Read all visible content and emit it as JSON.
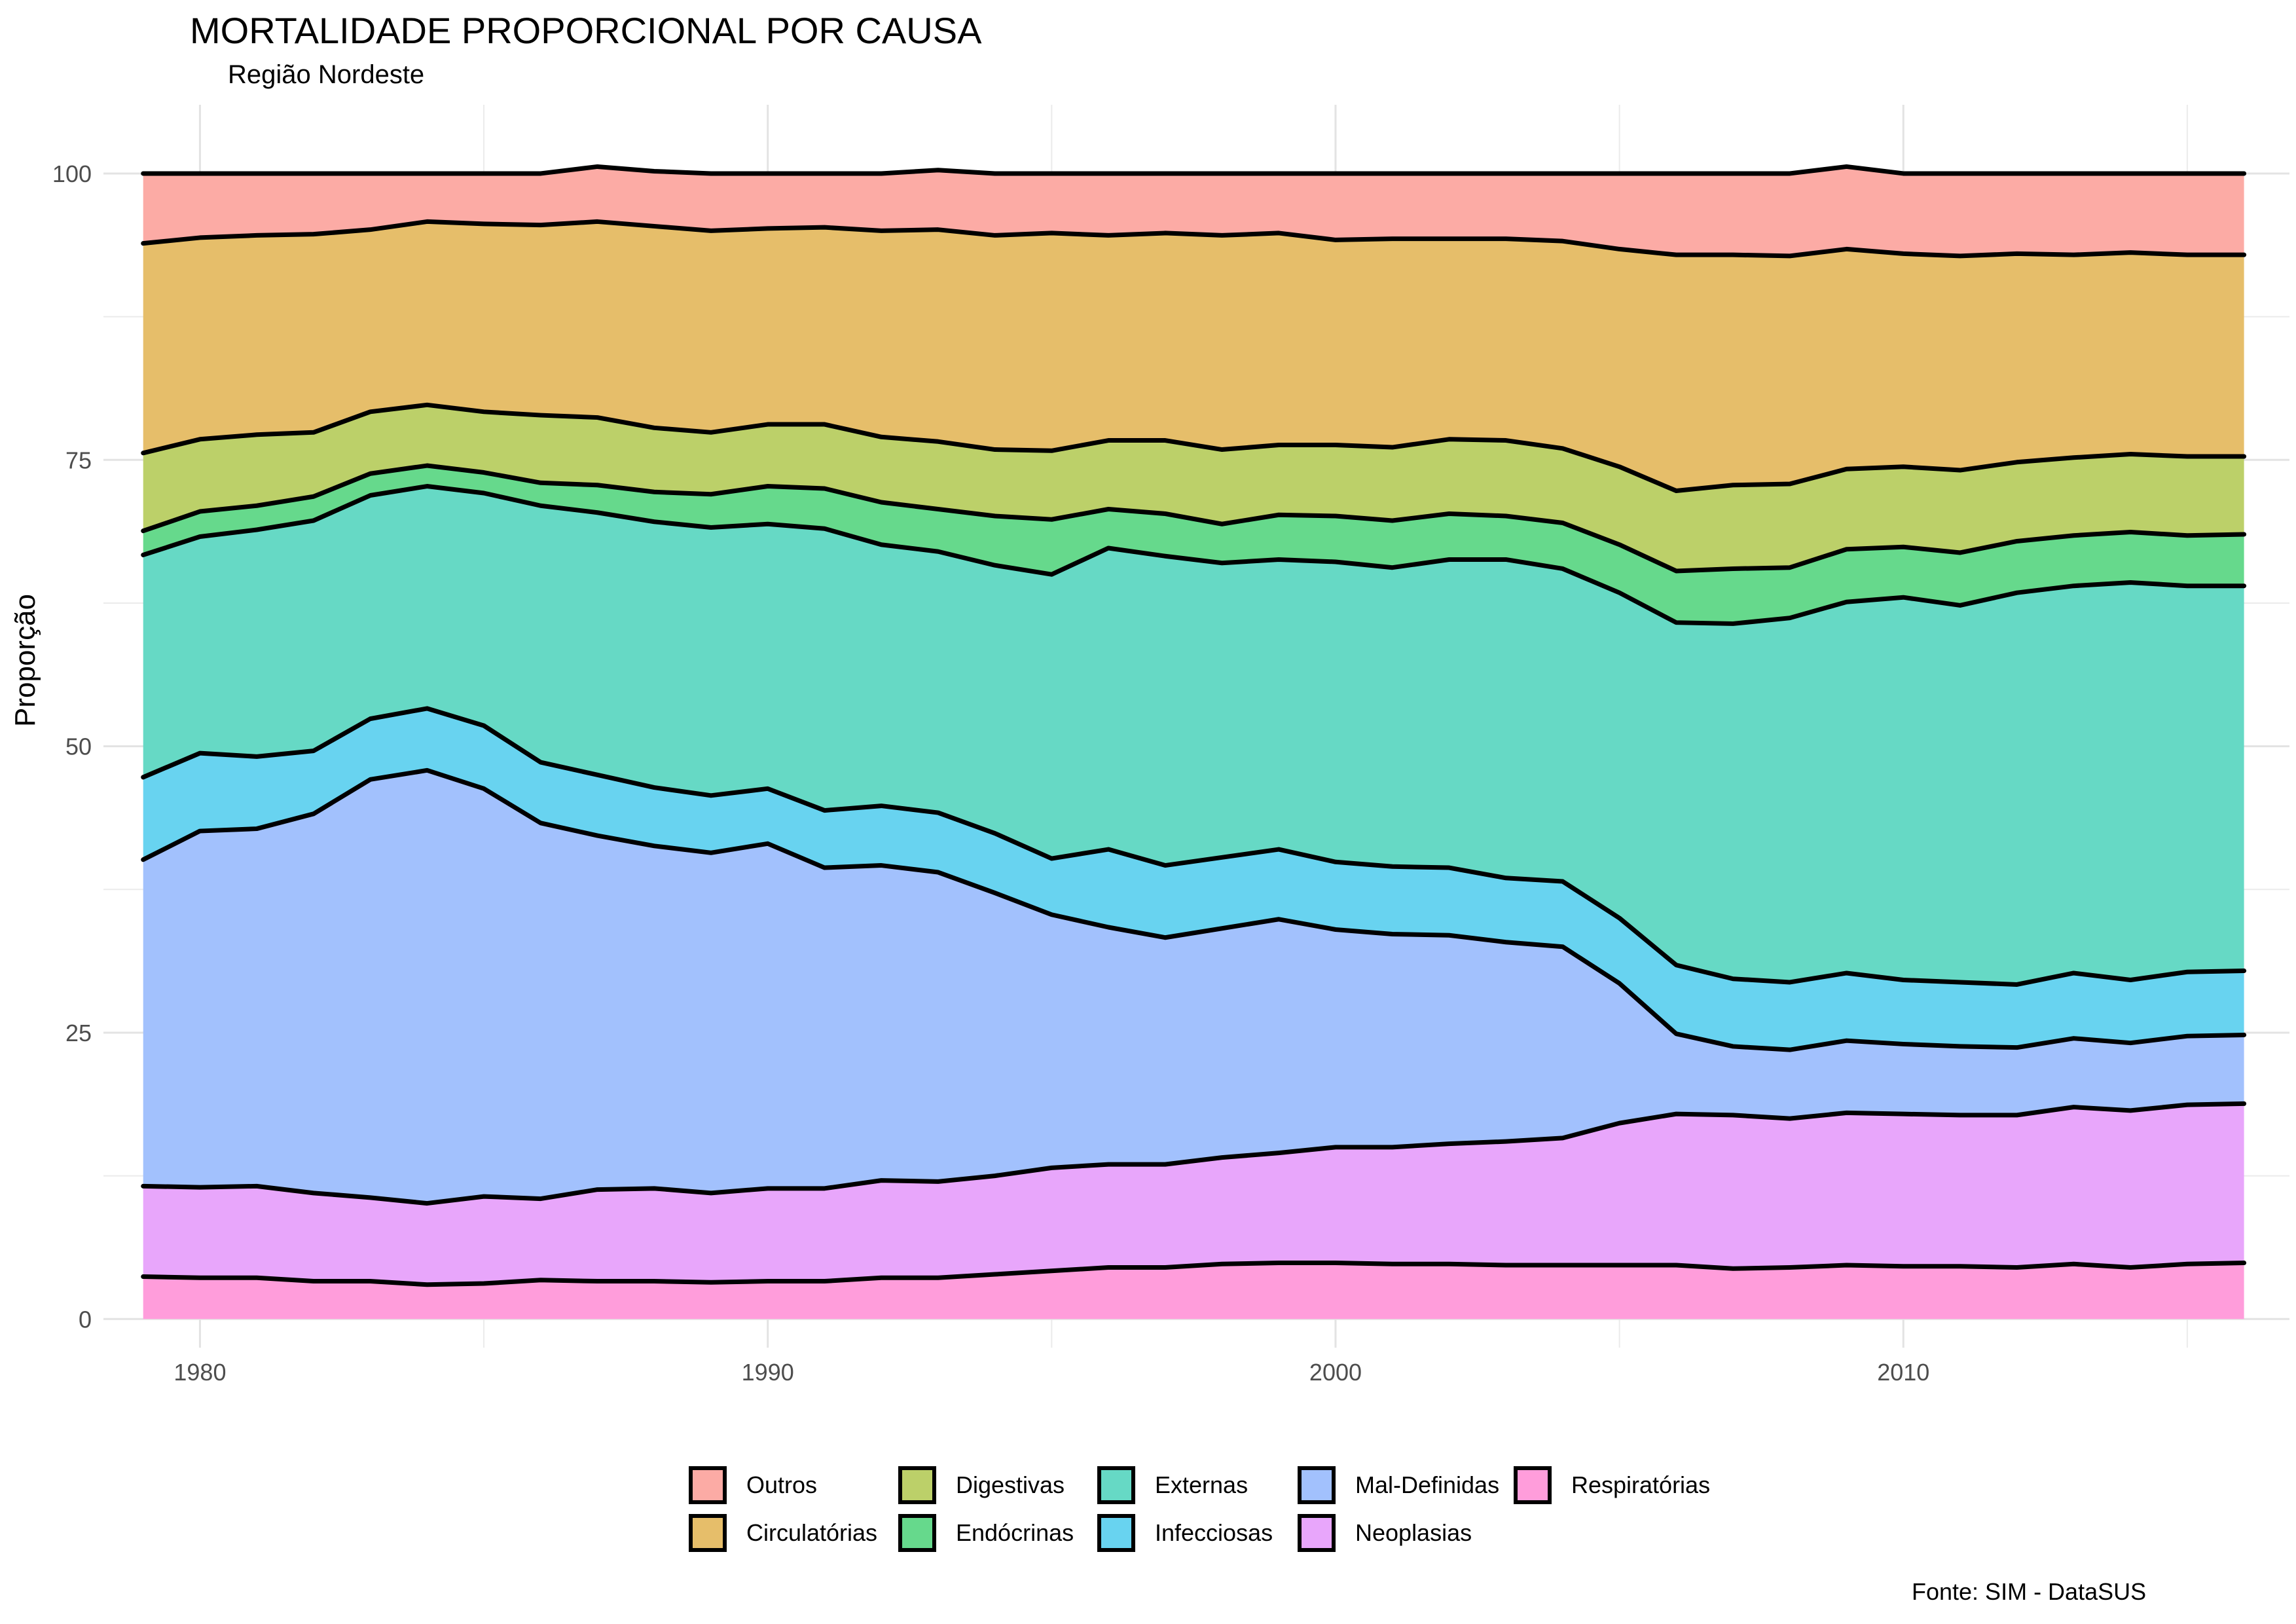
{
  "chart_data": {
    "type": "area",
    "stacked": true,
    "title": "MORTALIDADE PROPORCIONAL POR CAUSA",
    "subtitle": "Região Nordeste",
    "xlabel": "",
    "ylabel": "Proporção",
    "caption": "Fonte: SIM - DataSUS",
    "xlim": [
      1978.3,
      2016.8
    ],
    "ylim": [
      -2.5,
      106
    ],
    "x_ticks": [
      1980,
      1990,
      2000,
      2010
    ],
    "y_ticks": [
      0,
      25,
      50,
      75,
      100
    ],
    "grid": true,
    "legend_position": "bottom",
    "x": [
      1979,
      1980,
      1981,
      1982,
      1983,
      1984,
      1985,
      1986,
      1987,
      1988,
      1989,
      1990,
      1991,
      1992,
      1993,
      1994,
      1995,
      1996,
      1997,
      1998,
      1999,
      2000,
      2001,
      2002,
      2003,
      2004,
      2005,
      2006,
      2007,
      2008,
      2009,
      2010,
      2011,
      2012,
      2013,
      2014,
      2015,
      2016
    ],
    "series": [
      {
        "name": "Respiratórias",
        "color": "#FF9DDB",
        "values": [
          3.7,
          3.6,
          3.6,
          3.3,
          3.3,
          3.0,
          3.1,
          3.4,
          3.3,
          3.3,
          3.2,
          3.3,
          3.3,
          3.6,
          3.6,
          3.9,
          4.2,
          4.5,
          4.5,
          4.8,
          4.9,
          4.9,
          4.8,
          4.8,
          4.7,
          4.7,
          4.7,
          4.7,
          4.4,
          4.5,
          4.7,
          4.6,
          4.6,
          4.5,
          4.8,
          4.5,
          4.8,
          4.9
        ]
      },
      {
        "name": "Neoplasias",
        "color": "#E8A6FB",
        "values": [
          7.9,
          7.9,
          8.0,
          7.7,
          7.3,
          7.1,
          7.6,
          7.1,
          8.0,
          8.1,
          7.8,
          8.1,
          8.1,
          8.5,
          8.4,
          8.6,
          9.0,
          9.0,
          9.0,
          9.3,
          9.6,
          10.1,
          10.2,
          10.5,
          10.8,
          11.1,
          12.4,
          13.2,
          13.4,
          13.0,
          13.3,
          13.3,
          13.2,
          13.3,
          13.7,
          13.7,
          13.9,
          13.9
        ]
      },
      {
        "name": "Mal-Definidas",
        "color": "#A2C1FD",
        "values": [
          28.5,
          31.1,
          31.2,
          33.1,
          36.5,
          37.8,
          35.6,
          32.8,
          30.9,
          29.9,
          29.7,
          30.1,
          28.0,
          27.5,
          27.0,
          24.7,
          22.1,
          20.7,
          19.8,
          20.0,
          20.4,
          19.0,
          18.6,
          18.2,
          17.4,
          16.7,
          12.2,
          7.0,
          6.0,
          6.0,
          6.3,
          6.1,
          6.0,
          5.9,
          6.0,
          5.9,
          6.0,
          6.0
        ]
      },
      {
        "name": "Infecciosas",
        "color": "#68D3F0",
        "values": [
          7.2,
          6.8,
          6.3,
          5.5,
          5.3,
          5.4,
          5.5,
          5.3,
          5.3,
          5.1,
          5.0,
          4.8,
          5.0,
          5.2,
          5.2,
          5.2,
          4.9,
          6.8,
          6.3,
          6.2,
          6.1,
          5.9,
          5.9,
          5.9,
          5.6,
          5.7,
          5.7,
          6.0,
          5.9,
          5.9,
          5.9,
          5.6,
          5.6,
          5.5,
          5.7,
          5.5,
          5.6,
          5.6
        ]
      },
      {
        "name": "Externas",
        "color": "#66D9C5",
        "values": [
          19.4,
          18.9,
          19.8,
          20.1,
          19.5,
          19.4,
          20.3,
          22.4,
          22.9,
          23.2,
          23.4,
          23.1,
          24.6,
          22.8,
          22.8,
          23.4,
          24.8,
          26.3,
          27.0,
          25.7,
          25.3,
          26.2,
          26.1,
          26.9,
          27.8,
          27.3,
          28.4,
          29.9,
          31.0,
          31.8,
          32.4,
          33.4,
          32.9,
          34.2,
          33.8,
          34.7,
          33.7,
          33.6
        ]
      },
      {
        "name": "Endócrinas",
        "color": "#66D98C",
        "values": [
          2.1,
          2.2,
          2.1,
          2.1,
          1.9,
          1.8,
          1.8,
          2.0,
          2.4,
          2.6,
          2.9,
          3.3,
          3.5,
          3.7,
          3.7,
          4.3,
          4.8,
          3.4,
          3.7,
          3.4,
          3.9,
          4.0,
          4.1,
          4.0,
          3.8,
          4.0,
          4.2,
          4.5,
          4.8,
          4.4,
          4.6,
          4.4,
          4.6,
          4.5,
          4.4,
          4.4,
          4.4,
          4.5
        ]
      },
      {
        "name": "Digestivas",
        "color": "#BCD069",
        "values": [
          6.8,
          6.3,
          6.2,
          5.6,
          5.4,
          5.3,
          5.3,
          5.9,
          5.9,
          5.6,
          5.4,
          5.4,
          5.6,
          5.7,
          5.9,
          5.8,
          6.0,
          6.0,
          6.4,
          6.5,
          6.1,
          6.2,
          6.4,
          6.5,
          6.6,
          6.5,
          6.8,
          7.0,
          7.3,
          7.3,
          7.0,
          7.0,
          7.2,
          6.9,
          6.8,
          6.8,
          6.9,
          6.8
        ]
      },
      {
        "name": "Circulatórias",
        "color": "#E6BE6A",
        "values": [
          18.3,
          17.6,
          17.4,
          17.3,
          15.9,
          16.0,
          16.4,
          16.6,
          17.1,
          17.6,
          17.6,
          17.1,
          17.2,
          18.0,
          18.5,
          18.7,
          19.0,
          17.9,
          18.1,
          18.7,
          18.5,
          17.9,
          18.2,
          17.5,
          17.6,
          18.1,
          19.0,
          20.6,
          20.1,
          19.9,
          19.2,
          18.6,
          18.7,
          18.2,
          17.7,
          17.6,
          17.6,
          17.6
        ]
      },
      {
        "name": "Outros",
        "color": "#FCABA5",
        "values": [
          6.1,
          5.6,
          5.4,
          5.3,
          4.9,
          4.2,
          4.4,
          4.5,
          4.8,
          4.8,
          5.0,
          4.8,
          4.7,
          5.0,
          5.2,
          5.4,
          5.2,
          5.4,
          5.2,
          5.4,
          5.2,
          5.8,
          5.7,
          5.7,
          5.7,
          5.9,
          6.6,
          7.1,
          7.1,
          7.2,
          7.2,
          7.0,
          7.2,
          7.0,
          7.1,
          6.9,
          7.1,
          7.1
        ]
      }
    ]
  },
  "legend": {
    "items": [
      {
        "label": "Outros",
        "color": "#FCABA5"
      },
      {
        "label": "Circulatórias",
        "color": "#E6BE6A"
      },
      {
        "label": "Digestivas",
        "color": "#BCD069"
      },
      {
        "label": "Endócrinas",
        "color": "#66D98C"
      },
      {
        "label": "Externas",
        "color": "#66D9C5"
      },
      {
        "label": "Infecciosas",
        "color": "#68D3F0"
      },
      {
        "label": "Mal-Definidas",
        "color": "#A2C1FD"
      },
      {
        "label": "Neoplasias",
        "color": "#E8A6FB"
      },
      {
        "label": "Respiratórias",
        "color": "#FF9DDB"
      }
    ]
  }
}
